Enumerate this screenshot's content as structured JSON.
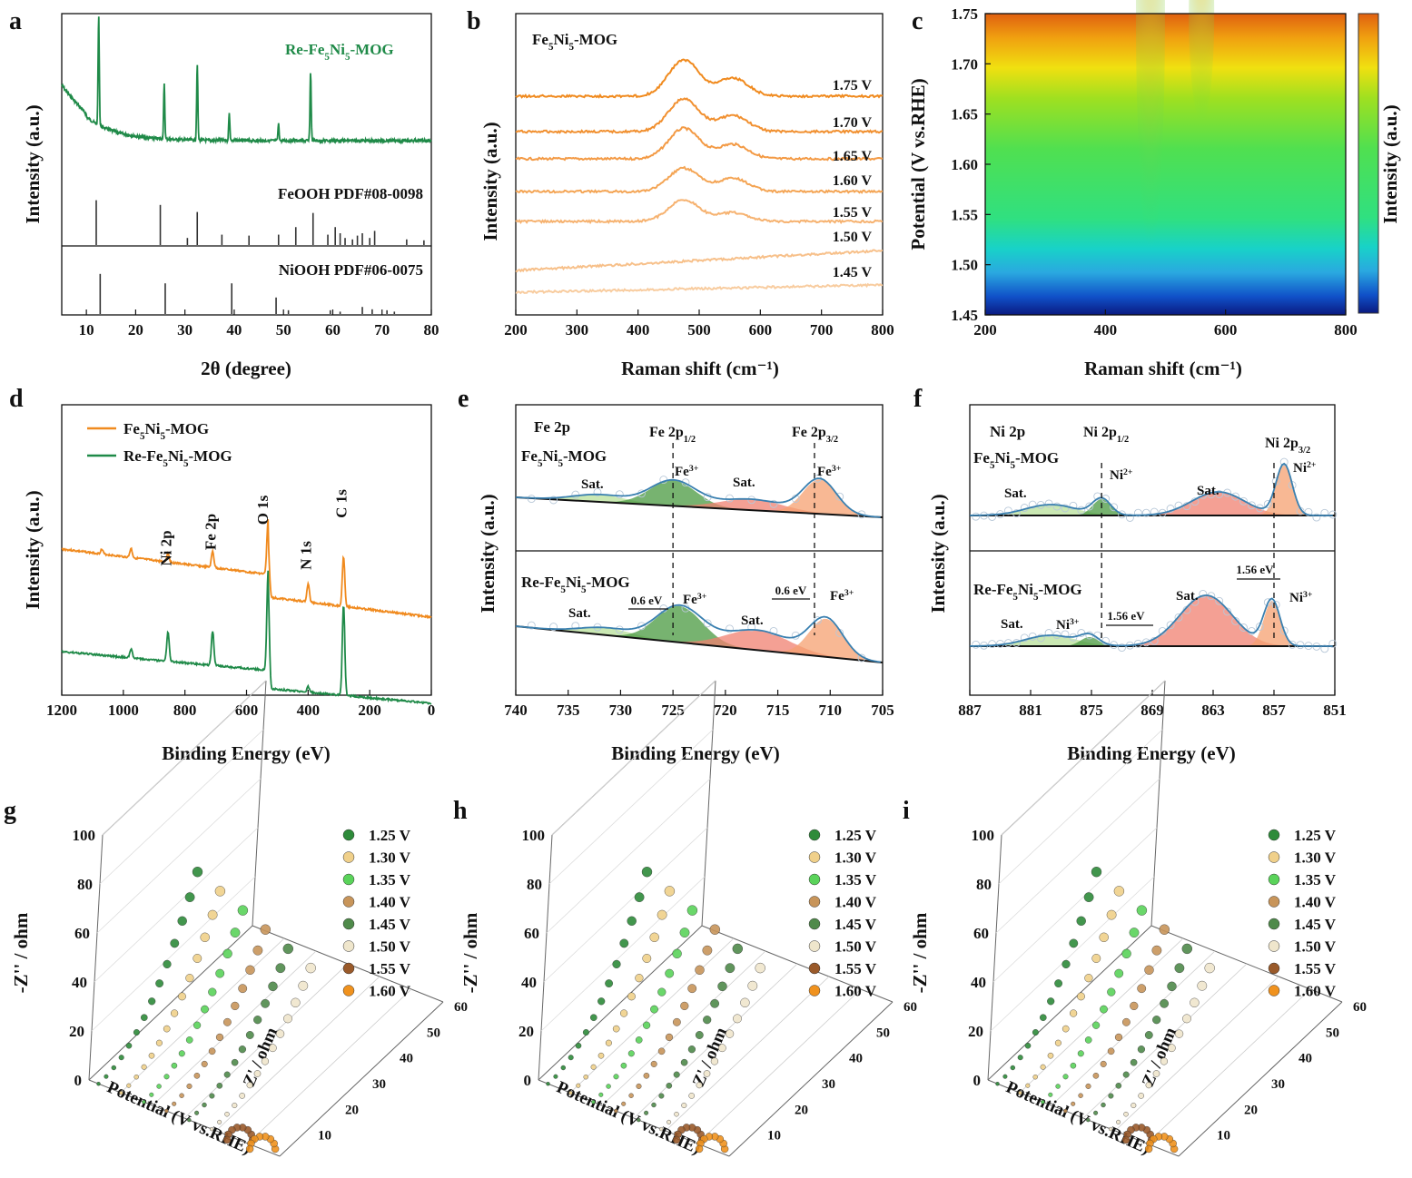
{
  "chart_data": [
    {
      "panel": "a",
      "type": "line",
      "xlabel": "2θ (degree)",
      "ylabel": "Intensity (a.u.)",
      "xlim": [
        5,
        80
      ],
      "xticks": [
        "10",
        "20",
        "30",
        "40",
        "50",
        "60",
        "70",
        "80"
      ],
      "series": [
        {
          "name": "Re-Fe5Ni5-MOG",
          "color": "#1f8a48",
          "peaks": [
            {
              "x": 12.5,
              "h": 0.8
            },
            {
              "x": 25.8,
              "h": 0.4
            },
            {
              "x": 32.5,
              "h": 0.55
            },
            {
              "x": 39.0,
              "h": 0.2
            },
            {
              "x": 49.0,
              "h": 0.12
            },
            {
              "x": 55.5,
              "h": 0.5
            }
          ]
        }
      ],
      "references": [
        {
          "name": "FeOOH PDF#08-0098",
          "lines": [
            {
              "x": 12.0,
              "h": 0.95
            },
            {
              "x": 25.0,
              "h": 0.85
            },
            {
              "x": 32.5,
              "h": 0.7
            },
            {
              "x": 30.5,
              "h": 0.15
            },
            {
              "x": 37.5,
              "h": 0.22
            },
            {
              "x": 43.0,
              "h": 0.2
            },
            {
              "x": 49.0,
              "h": 0.22
            },
            {
              "x": 52.5,
              "h": 0.38
            },
            {
              "x": 56.0,
              "h": 0.68
            },
            {
              "x": 59.0,
              "h": 0.22
            },
            {
              "x": 60.5,
              "h": 0.38
            },
            {
              "x": 61.5,
              "h": 0.25
            },
            {
              "x": 62.5,
              "h": 0.15
            },
            {
              "x": 64.0,
              "h": 0.12
            },
            {
              "x": 65.0,
              "h": 0.2
            },
            {
              "x": 66.0,
              "h": 0.25
            },
            {
              "x": 67.5,
              "h": 0.15
            },
            {
              "x": 68.5,
              "h": 0.3
            },
            {
              "x": 75.0,
              "h": 0.12
            },
            {
              "x": 78.5,
              "h": 0.1
            }
          ]
        },
        {
          "name": "NiOOH PDF#06-0075",
          "lines": [
            {
              "x": 12.8,
              "h": 0.85
            },
            {
              "x": 26.0,
              "h": 0.65
            },
            {
              "x": 39.5,
              "h": 0.65
            },
            {
              "x": 48.5,
              "h": 0.35
            },
            {
              "x": 51.0,
              "h": 0.08
            },
            {
              "x": 59.5,
              "h": 0.08
            },
            {
              "x": 61.5,
              "h": 0.05
            },
            {
              "x": 66.0,
              "h": 0.15
            },
            {
              "x": 68.0,
              "h": 0.1
            },
            {
              "x": 71.0,
              "h": 0.08
            },
            {
              "x": 72.5,
              "h": 0.05
            }
          ]
        }
      ]
    },
    {
      "panel": "b",
      "type": "line",
      "xlabel": "Raman shift (cm⁻¹)",
      "ylabel": "Intensity (a.u.)",
      "xlim": [
        200,
        800
      ],
      "xticks": [
        "200",
        "300",
        "400",
        "500",
        "600",
        "700",
        "800"
      ],
      "sample": "Fe5Ni5-MOG",
      "series": [
        {
          "name": "1.75 V",
          "color": "#f08a1e",
          "peak1": 0.5,
          "peak2": 0.25
        },
        {
          "name": "1.70 V",
          "color": "#f19030",
          "peak1": 0.45,
          "peak2": 0.22
        },
        {
          "name": "1.65 V",
          "color": "#f39a45",
          "peak1": 0.42,
          "peak2": 0.2
        },
        {
          "name": "1.60 V",
          "color": "#f4a555",
          "peak1": 0.32,
          "peak2": 0.18
        },
        {
          "name": "1.55 V",
          "color": "#f6b270",
          "peak1": 0.3,
          "peak2": 0.12
        },
        {
          "name": "1.50 V",
          "color": "#f7c08a",
          "peak1": 0.0,
          "peak2": 0.0
        },
        {
          "name": "1.45 V",
          "color": "#f8cc9f",
          "peak1": 0.0,
          "peak2": 0.0
        }
      ]
    },
    {
      "panel": "c",
      "type": "heatmap",
      "xlabel": "Raman shift (cm⁻¹)",
      "ylabel": "Potential (V vs.RHE)",
      "colorbar_label": "Intensity (a.u.)",
      "xlim": [
        200,
        800
      ],
      "ylim": [
        1.45,
        1.75
      ],
      "xticks": [
        "200",
        "400",
        "600",
        "800"
      ],
      "yticks": [
        "1.45",
        "1.50",
        "1.55",
        "1.60",
        "1.65",
        "1.70",
        "1.75"
      ]
    },
    {
      "panel": "d",
      "type": "line",
      "xlabel": "Binding Energy (eV)",
      "ylabel": "Intensity (a.u.)",
      "xlim": [
        1200,
        0
      ],
      "xticks": [
        "1200",
        "1000",
        "800",
        "600",
        "400",
        "200",
        "0"
      ],
      "series": [
        {
          "name": "Fe5Ni5-MOG",
          "color": "#f08a1e"
        },
        {
          "name": "Re-Fe5Ni5-MOG",
          "color": "#1f8a48"
        }
      ],
      "annotations": [
        "Ni 2p",
        "Fe 2p",
        "O 1s",
        "N 1s",
        "C 1s"
      ]
    },
    {
      "panel": "e",
      "type": "line",
      "xlabel": "Binding Energy (eV)",
      "ylabel": "Intensity (a.u.)",
      "xlim": [
        740,
        705
      ],
      "xticks": [
        "740",
        "735",
        "730",
        "725",
        "720",
        "715",
        "710",
        "705"
      ],
      "title": "Fe 2p",
      "annotations": [
        "Fe 2p1/2",
        "Fe 2p3/2",
        "Fe5Ni5-MOG",
        "Re-Fe5Ni5-MOG",
        "Sat.",
        "Fe3+",
        "0.6 eV"
      ]
    },
    {
      "panel": "f",
      "type": "line",
      "xlabel": "Binding Energy (eV)",
      "ylabel": "Intensity (a.u.)",
      "xlim": [
        887,
        851
      ],
      "xticks": [
        "887",
        "881",
        "875",
        "869",
        "863",
        "857",
        "851"
      ],
      "title": "Ni 2p",
      "annotations": [
        "Ni 2p1/2",
        "Ni 2p3/2",
        "Fe5Ni5-MOG",
        "Re-Fe5Ni5-MOG",
        "Sat.",
        "Ni2+",
        "Ni3+",
        "1.56 eV"
      ]
    },
    {
      "panel": "g",
      "type": "scatter",
      "xlabel": "Potential (V vs.RHE)",
      "ylabel": "-Z'' / ohm",
      "zlabel": "Z' / ohm",
      "zticks": [
        "0",
        "20",
        "40",
        "60",
        "80",
        "100"
      ],
      "depthticks": [
        "10",
        "20",
        "30",
        "40",
        "50",
        "60"
      ]
    },
    {
      "panel": "h",
      "type": "scatter",
      "xlabel": "Potential (V vs.RHE)",
      "ylabel": "-Z'' / ohm",
      "zlabel": "Z' / ohm",
      "zticks": [
        "0",
        "20",
        "40",
        "60",
        "80",
        "100"
      ],
      "depthticks": [
        "10",
        "20",
        "30",
        "40",
        "50",
        "60"
      ]
    },
    {
      "panel": "i",
      "type": "scatter",
      "xlabel": "Potential (V vs.RHE)",
      "ylabel": "-Z'' / ohm",
      "zlabel": "Z' / ohm",
      "zticks": [
        "0",
        "20",
        "40",
        "60",
        "80",
        "100"
      ],
      "depthticks": [
        "10",
        "20",
        "30",
        "40",
        "50",
        "60"
      ]
    }
  ],
  "legend_ghi": [
    {
      "name": "1.25 V",
      "color": "#2e8b3a"
    },
    {
      "name": "1.30 V",
      "color": "#f0d08a"
    },
    {
      "name": "1.35 V",
      "color": "#5ad35a"
    },
    {
      "name": "1.40 V",
      "color": "#c8955a"
    },
    {
      "name": "1.45 V",
      "color": "#4f8a4a"
    },
    {
      "name": "1.50 V",
      "color": "#efe6cc"
    },
    {
      "name": "1.55 V",
      "color": "#9a5a2a"
    },
    {
      "name": "1.60 V",
      "color": "#f0921e"
    }
  ]
}
